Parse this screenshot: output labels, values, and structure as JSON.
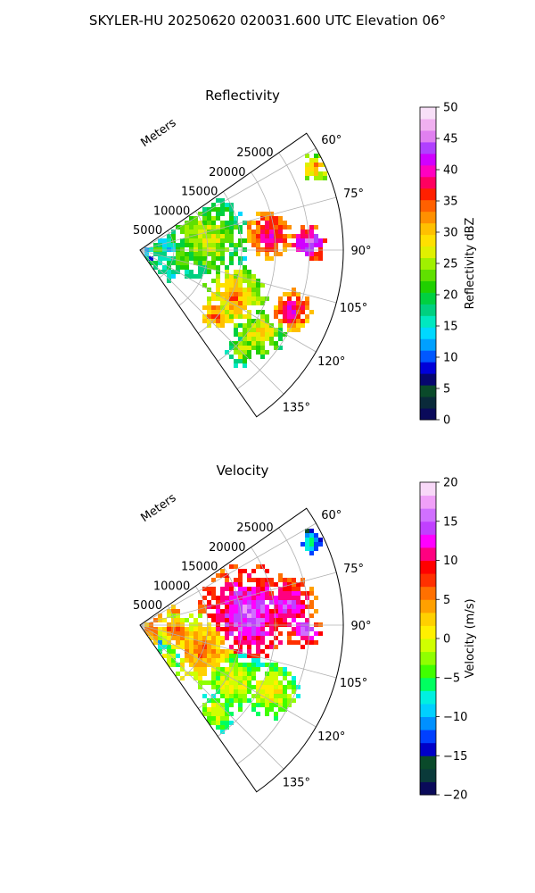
{
  "title": "SKYLER-HU  20250620  020031.600 UTC Elevation 06°",
  "chart_data": [
    {
      "type": "ppi-sector",
      "title": "Reflectivity",
      "range_label": "Meters",
      "range_ticks": [
        "5000",
        "10000",
        "15000",
        "20000",
        "25000"
      ],
      "azimuth_ticks": [
        "60°",
        "75°",
        "90°",
        "105°",
        "120°",
        "135°"
      ],
      "azimuth_range_deg": [
        55,
        145
      ],
      "range_max_m": 30000,
      "colorbar": {
        "label": "Reflectivity dBZ",
        "min": 0,
        "max": 50,
        "ticks": [
          "0",
          "5",
          "10",
          "15",
          "20",
          "25",
          "30",
          "35",
          "40",
          "45",
          "50"
        ],
        "colors": [
          "#0a0a5a",
          "#0a2a3a",
          "#0a4a2a",
          "#06066e",
          "#0000d8",
          "#0058ff",
          "#00a0ff",
          "#00d8ff",
          "#00e8c0",
          "#00d080",
          "#00d040",
          "#20d000",
          "#60e000",
          "#a0f000",
          "#e0f000",
          "#ffe000",
          "#ffc000",
          "#ff9000",
          "#ff6000",
          "#ff2000",
          "#ff0060",
          "#ff00c0",
          "#d000ff",
          "#b040ff",
          "#e080f0",
          "#f0b0f0",
          "#f8e0f8"
        ]
      }
    },
    {
      "type": "ppi-sector",
      "title": "Velocity",
      "range_label": "Meters",
      "range_ticks": [
        "5000",
        "10000",
        "15000",
        "20000",
        "25000"
      ],
      "azimuth_ticks": [
        "60°",
        "75°",
        "90°",
        "105°",
        "120°",
        "135°"
      ],
      "azimuth_range_deg": [
        55,
        145
      ],
      "range_max_m": 30000,
      "colorbar": {
        "label": "Velocity (m/s)",
        "min": -20,
        "max": 20,
        "ticks": [
          "−20",
          "−15",
          "−10",
          "−5",
          "0",
          "5",
          "10",
          "15",
          "20"
        ],
        "colors": [
          "#0a0a5a",
          "#0a3a3a",
          "#0a4a2a",
          "#0000c8",
          "#0040ff",
          "#0090ff",
          "#00d0ff",
          "#00f0e0",
          "#00ff60",
          "#40ff00",
          "#90ff00",
          "#d0ff00",
          "#fff000",
          "#ffd000",
          "#ffa000",
          "#ff7000",
          "#ff3000",
          "#ff0000",
          "#ff0080",
          "#ff00ff",
          "#c040ff",
          "#d070ff",
          "#f0a0f8",
          "#f8d8f8"
        ]
      }
    }
  ]
}
